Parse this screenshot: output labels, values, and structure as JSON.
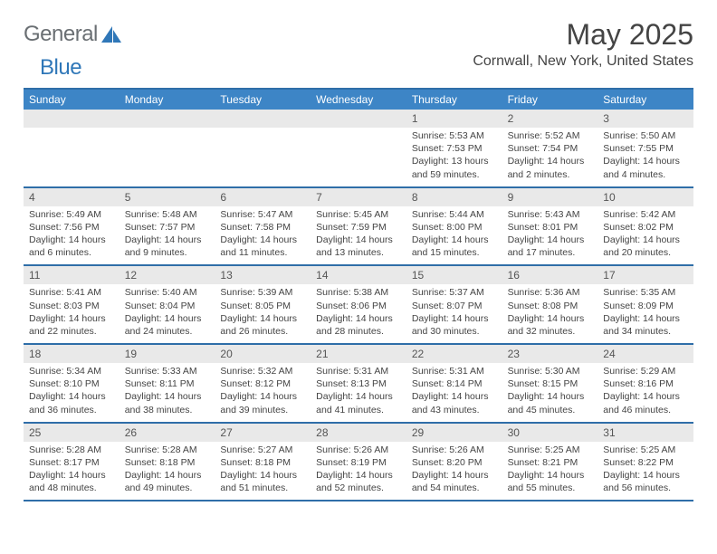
{
  "brand": {
    "text_general": "General",
    "text_blue": "Blue",
    "accent_color": "#2f77b8",
    "gray_color": "#6a6f73"
  },
  "header": {
    "title": "May 2025",
    "location": "Cornwall, New York, United States"
  },
  "colors": {
    "header_bar": "#3d85c6",
    "rule": "#2f6ea8",
    "daynum_bg": "#e9e9e9",
    "text": "#444444",
    "page_bg": "#ffffff"
  },
  "dow": [
    "Sunday",
    "Monday",
    "Tuesday",
    "Wednesday",
    "Thursday",
    "Friday",
    "Saturday"
  ],
  "weeks": [
    [
      {
        "num": "",
        "sunrise": "",
        "sunset": "",
        "daylight": ""
      },
      {
        "num": "",
        "sunrise": "",
        "sunset": "",
        "daylight": ""
      },
      {
        "num": "",
        "sunrise": "",
        "sunset": "",
        "daylight": ""
      },
      {
        "num": "",
        "sunrise": "",
        "sunset": "",
        "daylight": ""
      },
      {
        "num": "1",
        "sunrise": "Sunrise: 5:53 AM",
        "sunset": "Sunset: 7:53 PM",
        "daylight": "Daylight: 13 hours and 59 minutes."
      },
      {
        "num": "2",
        "sunrise": "Sunrise: 5:52 AM",
        "sunset": "Sunset: 7:54 PM",
        "daylight": "Daylight: 14 hours and 2 minutes."
      },
      {
        "num": "3",
        "sunrise": "Sunrise: 5:50 AM",
        "sunset": "Sunset: 7:55 PM",
        "daylight": "Daylight: 14 hours and 4 minutes."
      }
    ],
    [
      {
        "num": "4",
        "sunrise": "Sunrise: 5:49 AM",
        "sunset": "Sunset: 7:56 PM",
        "daylight": "Daylight: 14 hours and 6 minutes."
      },
      {
        "num": "5",
        "sunrise": "Sunrise: 5:48 AM",
        "sunset": "Sunset: 7:57 PM",
        "daylight": "Daylight: 14 hours and 9 minutes."
      },
      {
        "num": "6",
        "sunrise": "Sunrise: 5:47 AM",
        "sunset": "Sunset: 7:58 PM",
        "daylight": "Daylight: 14 hours and 11 minutes."
      },
      {
        "num": "7",
        "sunrise": "Sunrise: 5:45 AM",
        "sunset": "Sunset: 7:59 PM",
        "daylight": "Daylight: 14 hours and 13 minutes."
      },
      {
        "num": "8",
        "sunrise": "Sunrise: 5:44 AM",
        "sunset": "Sunset: 8:00 PM",
        "daylight": "Daylight: 14 hours and 15 minutes."
      },
      {
        "num": "9",
        "sunrise": "Sunrise: 5:43 AM",
        "sunset": "Sunset: 8:01 PM",
        "daylight": "Daylight: 14 hours and 17 minutes."
      },
      {
        "num": "10",
        "sunrise": "Sunrise: 5:42 AM",
        "sunset": "Sunset: 8:02 PM",
        "daylight": "Daylight: 14 hours and 20 minutes."
      }
    ],
    [
      {
        "num": "11",
        "sunrise": "Sunrise: 5:41 AM",
        "sunset": "Sunset: 8:03 PM",
        "daylight": "Daylight: 14 hours and 22 minutes."
      },
      {
        "num": "12",
        "sunrise": "Sunrise: 5:40 AM",
        "sunset": "Sunset: 8:04 PM",
        "daylight": "Daylight: 14 hours and 24 minutes."
      },
      {
        "num": "13",
        "sunrise": "Sunrise: 5:39 AM",
        "sunset": "Sunset: 8:05 PM",
        "daylight": "Daylight: 14 hours and 26 minutes."
      },
      {
        "num": "14",
        "sunrise": "Sunrise: 5:38 AM",
        "sunset": "Sunset: 8:06 PM",
        "daylight": "Daylight: 14 hours and 28 minutes."
      },
      {
        "num": "15",
        "sunrise": "Sunrise: 5:37 AM",
        "sunset": "Sunset: 8:07 PM",
        "daylight": "Daylight: 14 hours and 30 minutes."
      },
      {
        "num": "16",
        "sunrise": "Sunrise: 5:36 AM",
        "sunset": "Sunset: 8:08 PM",
        "daylight": "Daylight: 14 hours and 32 minutes."
      },
      {
        "num": "17",
        "sunrise": "Sunrise: 5:35 AM",
        "sunset": "Sunset: 8:09 PM",
        "daylight": "Daylight: 14 hours and 34 minutes."
      }
    ],
    [
      {
        "num": "18",
        "sunrise": "Sunrise: 5:34 AM",
        "sunset": "Sunset: 8:10 PM",
        "daylight": "Daylight: 14 hours and 36 minutes."
      },
      {
        "num": "19",
        "sunrise": "Sunrise: 5:33 AM",
        "sunset": "Sunset: 8:11 PM",
        "daylight": "Daylight: 14 hours and 38 minutes."
      },
      {
        "num": "20",
        "sunrise": "Sunrise: 5:32 AM",
        "sunset": "Sunset: 8:12 PM",
        "daylight": "Daylight: 14 hours and 39 minutes."
      },
      {
        "num": "21",
        "sunrise": "Sunrise: 5:31 AM",
        "sunset": "Sunset: 8:13 PM",
        "daylight": "Daylight: 14 hours and 41 minutes."
      },
      {
        "num": "22",
        "sunrise": "Sunrise: 5:31 AM",
        "sunset": "Sunset: 8:14 PM",
        "daylight": "Daylight: 14 hours and 43 minutes."
      },
      {
        "num": "23",
        "sunrise": "Sunrise: 5:30 AM",
        "sunset": "Sunset: 8:15 PM",
        "daylight": "Daylight: 14 hours and 45 minutes."
      },
      {
        "num": "24",
        "sunrise": "Sunrise: 5:29 AM",
        "sunset": "Sunset: 8:16 PM",
        "daylight": "Daylight: 14 hours and 46 minutes."
      }
    ],
    [
      {
        "num": "25",
        "sunrise": "Sunrise: 5:28 AM",
        "sunset": "Sunset: 8:17 PM",
        "daylight": "Daylight: 14 hours and 48 minutes."
      },
      {
        "num": "26",
        "sunrise": "Sunrise: 5:28 AM",
        "sunset": "Sunset: 8:18 PM",
        "daylight": "Daylight: 14 hours and 49 minutes."
      },
      {
        "num": "27",
        "sunrise": "Sunrise: 5:27 AM",
        "sunset": "Sunset: 8:18 PM",
        "daylight": "Daylight: 14 hours and 51 minutes."
      },
      {
        "num": "28",
        "sunrise": "Sunrise: 5:26 AM",
        "sunset": "Sunset: 8:19 PM",
        "daylight": "Daylight: 14 hours and 52 minutes."
      },
      {
        "num": "29",
        "sunrise": "Sunrise: 5:26 AM",
        "sunset": "Sunset: 8:20 PM",
        "daylight": "Daylight: 14 hours and 54 minutes."
      },
      {
        "num": "30",
        "sunrise": "Sunrise: 5:25 AM",
        "sunset": "Sunset: 8:21 PM",
        "daylight": "Daylight: 14 hours and 55 minutes."
      },
      {
        "num": "31",
        "sunrise": "Sunrise: 5:25 AM",
        "sunset": "Sunset: 8:22 PM",
        "daylight": "Daylight: 14 hours and 56 minutes."
      }
    ]
  ]
}
